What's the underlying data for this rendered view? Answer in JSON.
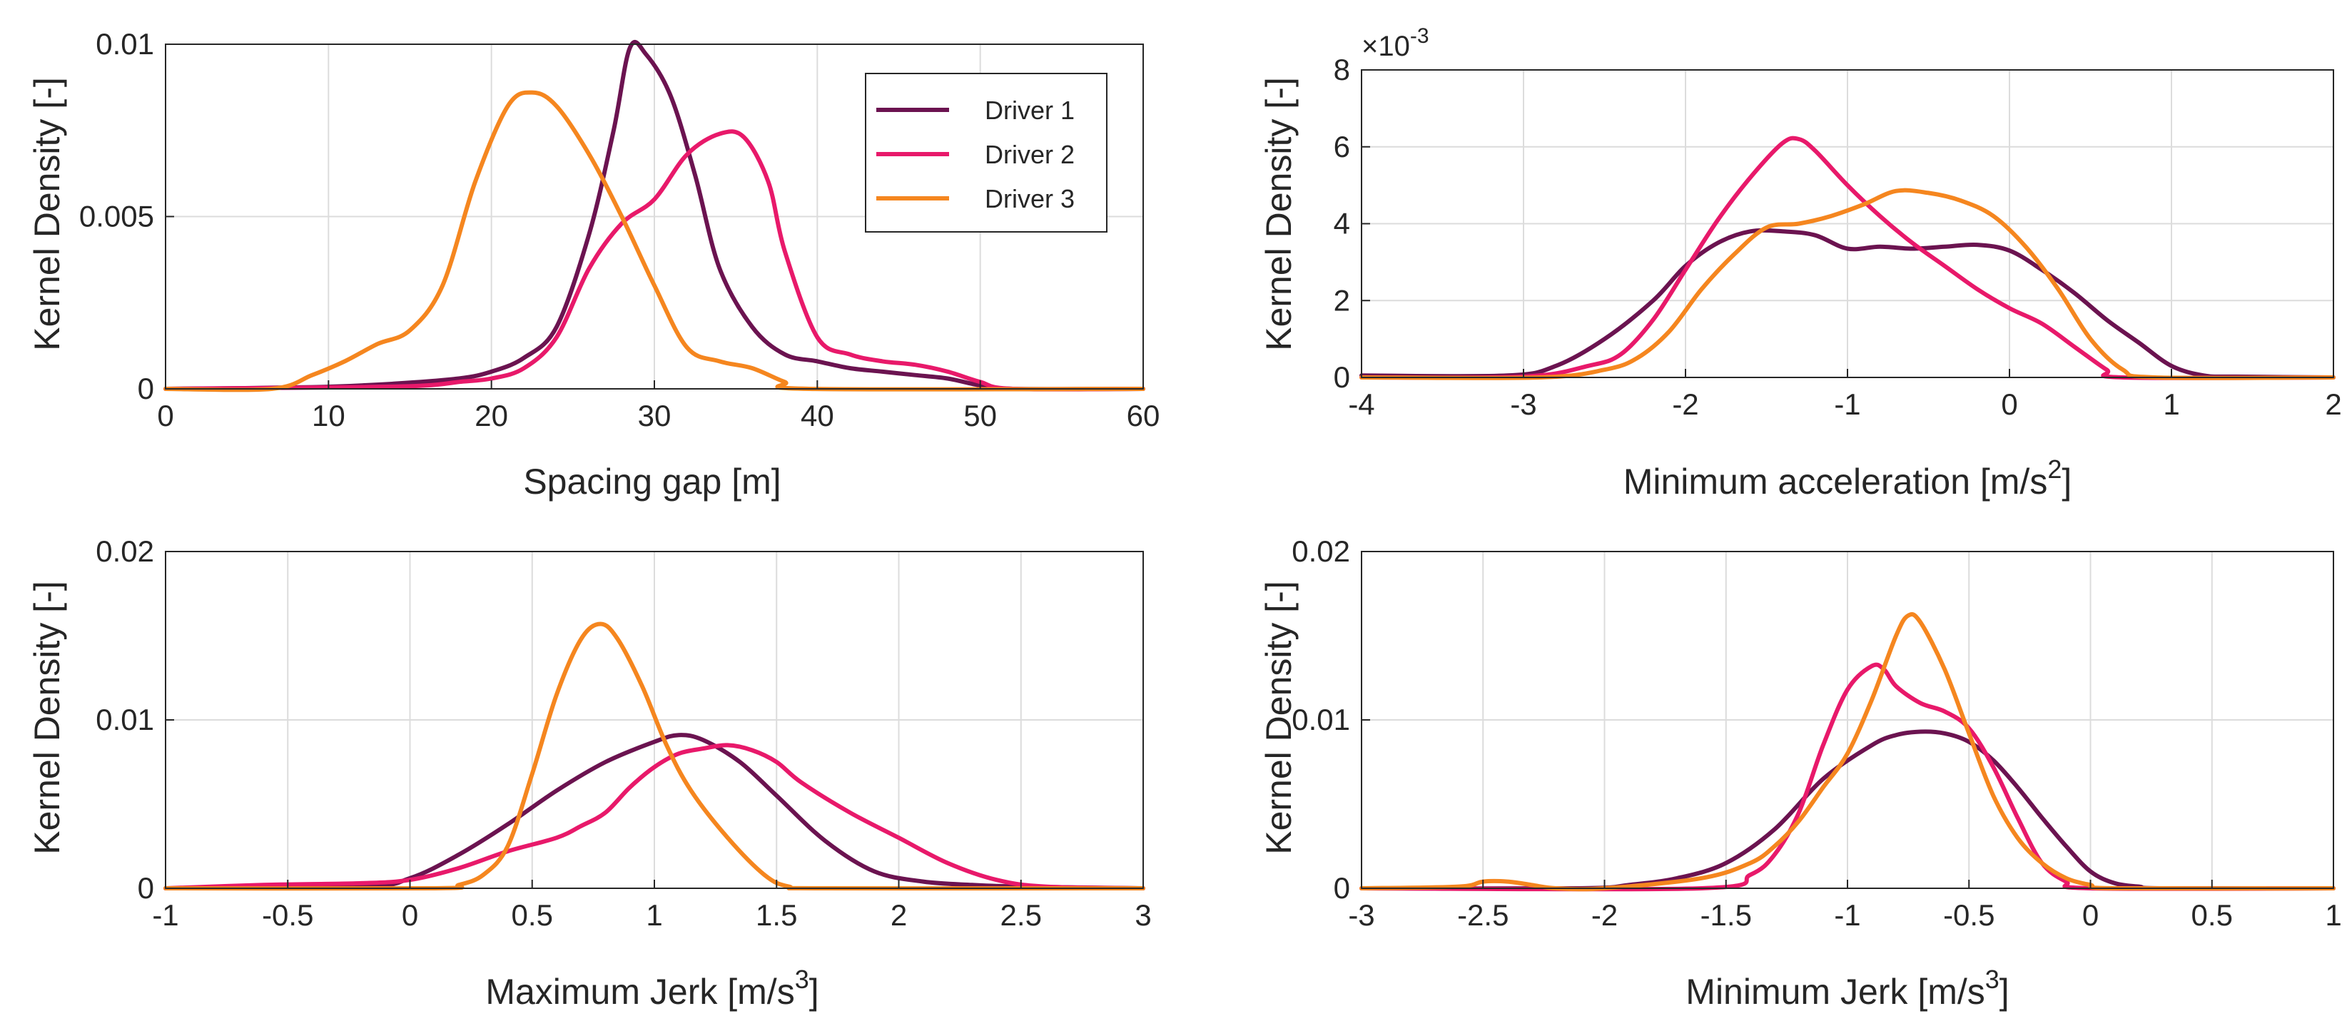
{
  "colors": {
    "driver1": "#6b1350",
    "driver2": "#e8196a",
    "driver3": "#f5861f"
  },
  "chart_data": [
    {
      "id": "spacing",
      "type": "line",
      "title": "",
      "xlabel": "Spacing gap [m]",
      "ylabel": "Kernel Density [-]",
      "xlim": [
        0,
        60
      ],
      "ylim": [
        0,
        0.01
      ],
      "xticks": [
        0,
        10,
        20,
        30,
        40,
        50,
        60
      ],
      "xtick_labels": [
        "0",
        "10",
        "20",
        "30",
        "40",
        "50",
        "60"
      ],
      "yticks": [
        0,
        0.005,
        0.01
      ],
      "ytick_labels": [
        "0",
        "0.005",
        "0.01"
      ],
      "legend": {
        "position": "top-right",
        "entries": [
          "Driver 1",
          "Driver 2",
          "Driver 3"
        ]
      },
      "series": [
        {
          "name": "Driver 1",
          "color": "driver1",
          "x": [
            0,
            9,
            14,
            18,
            20,
            22,
            24,
            26,
            27.5,
            28.5,
            29.5,
            31,
            32.5,
            34,
            36,
            38,
            40,
            42,
            44,
            46,
            48,
            50,
            52,
            60
          ],
          "y": [
            0,
            5e-05,
            0.00015,
            0.0003,
            0.0005,
            0.0009,
            0.0018,
            0.0045,
            0.0075,
            0.0099,
            0.0097,
            0.0085,
            0.0062,
            0.0035,
            0.0018,
            0.001,
            0.0008,
            0.0006,
            0.0005,
            0.0004,
            0.0003,
            0.0001,
            0,
            0
          ]
        },
        {
          "name": "Driver 2",
          "color": "driver2",
          "x": [
            0,
            12,
            16,
            18,
            20,
            22,
            24,
            26,
            28,
            30,
            32,
            34,
            35.5,
            37,
            38,
            40,
            42,
            44,
            46,
            48,
            50,
            52,
            60
          ],
          "y": [
            0,
            5e-05,
            0.0001,
            0.0002,
            0.0003,
            0.0006,
            0.0015,
            0.0035,
            0.0048,
            0.0055,
            0.0068,
            0.0074,
            0.0073,
            0.006,
            0.004,
            0.0015,
            0.001,
            0.0008,
            0.0007,
            0.0005,
            0.0002,
            0,
            0
          ]
        },
        {
          "name": "Driver 3",
          "color": "driver3",
          "x": [
            0,
            6.5,
            9,
            11,
            13,
            15,
            17,
            19,
            21,
            22.5,
            24,
            26,
            28,
            30,
            32,
            34,
            36,
            38,
            39.5,
            60
          ],
          "y": [
            0,
            0,
            0.0004,
            0.0008,
            0.0013,
            0.0017,
            0.003,
            0.006,
            0.0082,
            0.0086,
            0.0082,
            0.0068,
            0.005,
            0.003,
            0.0012,
            0.0008,
            0.0006,
            0.0002,
            0,
            0
          ]
        }
      ]
    },
    {
      "id": "min-acc",
      "type": "line",
      "title": "",
      "xlabel": "Minimum acceleration [m/s",
      "xlabel_sup": "2",
      "xlabel_end": "]",
      "ylabel": "Kernel Density [-]",
      "y_exponent": "×10",
      "y_exponent_sup": "-3",
      "xlim": [
        -4,
        2
      ],
      "ylim": [
        0,
        8
      ],
      "xticks": [
        -4,
        -3,
        -2,
        -1,
        0,
        1,
        2
      ],
      "xtick_labels": [
        "-4",
        "-3",
        "-2",
        "-1",
        "0",
        "1",
        "2"
      ],
      "yticks": [
        0,
        2,
        4,
        6,
        8
      ],
      "ytick_labels": [
        "0",
        "2",
        "4",
        "6",
        "8"
      ],
      "series": [
        {
          "name": "Driver 1",
          "color": "driver1",
          "x": [
            -4,
            -3.1,
            -2.8,
            -2.5,
            -2.2,
            -2.0,
            -1.8,
            -1.6,
            -1.4,
            -1.2,
            -1.0,
            -0.8,
            -0.6,
            -0.4,
            -0.2,
            0,
            0.2,
            0.4,
            0.6,
            0.8,
            1.0,
            1.2,
            1.4,
            2
          ],
          "y": [
            0.05,
            0.05,
            0.3,
            1.0,
            2.0,
            2.9,
            3.5,
            3.8,
            3.8,
            3.7,
            3.35,
            3.4,
            3.35,
            3.4,
            3.45,
            3.3,
            2.8,
            2.2,
            1.5,
            0.9,
            0.3,
            0.05,
            0.02,
            0
          ]
        },
        {
          "name": "Driver 2",
          "color": "driver2",
          "x": [
            -4,
            -3.0,
            -2.6,
            -2.4,
            -2.2,
            -2.0,
            -1.8,
            -1.6,
            -1.4,
            -1.3,
            -1.2,
            -1.0,
            -0.8,
            -0.6,
            -0.4,
            -0.2,
            0,
            0.2,
            0.4,
            0.6,
            0.7,
            2
          ],
          "y": [
            0,
            0.02,
            0.3,
            0.6,
            1.5,
            2.8,
            4.1,
            5.2,
            6.1,
            6.2,
            5.9,
            5.0,
            4.2,
            3.5,
            2.9,
            2.3,
            1.8,
            1.4,
            0.8,
            0.2,
            0,
            0
          ]
        },
        {
          "name": "Driver 3",
          "color": "driver3",
          "x": [
            -4,
            -2.9,
            -2.5,
            -2.3,
            -2.1,
            -1.9,
            -1.7,
            -1.5,
            -1.3,
            -1.1,
            -0.9,
            -0.7,
            -0.5,
            -0.3,
            -0.1,
            0.1,
            0.3,
            0.5,
            0.7,
            0.9,
            2
          ],
          "y": [
            0,
            0,
            0.2,
            0.5,
            1.2,
            2.3,
            3.2,
            3.9,
            4.0,
            4.2,
            4.5,
            4.85,
            4.8,
            4.6,
            4.2,
            3.4,
            2.3,
            1.0,
            0.2,
            0,
            0
          ]
        }
      ]
    },
    {
      "id": "max-jerk",
      "type": "line",
      "title": "",
      "xlabel": "Maximum Jerk [m/s",
      "xlabel_sup": "3",
      "xlabel_end": "]",
      "ylabel": "Kernel Density [-]",
      "xlim": [
        -1,
        3
      ],
      "ylim": [
        0,
        0.02
      ],
      "xticks": [
        -1,
        -0.5,
        0,
        0.5,
        1,
        1.5,
        2,
        2.5,
        3
      ],
      "xtick_labels": [
        "-1",
        "-0.5",
        "0",
        "0.5",
        "1",
        "1.5",
        "2",
        "2.5",
        "3"
      ],
      "yticks": [
        0,
        0.01,
        0.02
      ],
      "ytick_labels": [
        "0",
        "0.01",
        "0.02"
      ],
      "series": [
        {
          "name": "Driver 1",
          "color": "driver1",
          "x": [
            -1,
            -0.2,
            0,
            0.2,
            0.4,
            0.6,
            0.8,
            1.0,
            1.1,
            1.2,
            1.35,
            1.5,
            1.7,
            1.9,
            2.1,
            2.3,
            2.5,
            3
          ],
          "y": [
            0,
            0.0001,
            0.0006,
            0.002,
            0.0038,
            0.0058,
            0.0075,
            0.0087,
            0.0091,
            0.0088,
            0.0075,
            0.0055,
            0.0028,
            0.001,
            0.0004,
            0.0002,
            0.0001,
            0
          ]
        },
        {
          "name": "Driver 2",
          "color": "driver2",
          "x": [
            -1,
            -0.6,
            -0.2,
            0,
            0.2,
            0.4,
            0.6,
            0.7,
            0.8,
            0.9,
            1.0,
            1.1,
            1.2,
            1.3,
            1.4,
            1.5,
            1.6,
            1.8,
            2.0,
            2.2,
            2.4,
            2.6,
            3
          ],
          "y": [
            0,
            0.0002,
            0.0003,
            0.0005,
            0.0012,
            0.0022,
            0.003,
            0.0037,
            0.0045,
            0.006,
            0.0072,
            0.008,
            0.0083,
            0.0085,
            0.0082,
            0.0075,
            0.0063,
            0.0045,
            0.003,
            0.0015,
            0.0005,
            0.0001,
            0
          ]
        },
        {
          "name": "Driver 3",
          "color": "driver3",
          "x": [
            -1,
            0.1,
            0.2,
            0.3,
            0.4,
            0.5,
            0.6,
            0.7,
            0.78,
            0.85,
            0.95,
            1.05,
            1.15,
            1.3,
            1.45,
            1.55,
            1.7,
            3
          ],
          "y": [
            0,
            0,
            0.0002,
            0.0008,
            0.0025,
            0.0068,
            0.0115,
            0.0148,
            0.0157,
            0.0148,
            0.012,
            0.0085,
            0.0058,
            0.003,
            0.0008,
            0.0001,
            0,
            0
          ]
        }
      ]
    },
    {
      "id": "min-jerk",
      "type": "line",
      "title": "",
      "xlabel": "Minimum Jerk [m/s",
      "xlabel_sup": "3",
      "xlabel_end": "]",
      "ylabel": "Kernel Density [-]",
      "xlim": [
        -3,
        1
      ],
      "ylim": [
        0,
        0.02
      ],
      "xticks": [
        -3,
        -2.5,
        -2,
        -1.5,
        -1,
        -0.5,
        0,
        0.5,
        1
      ],
      "xtick_labels": [
        "-3",
        "-2.5",
        "-2",
        "-1.5",
        "-1",
        "-0.5",
        "0",
        "0.5",
        "1"
      ],
      "yticks": [
        0,
        0.01,
        0.02
      ],
      "ytick_labels": [
        "0",
        "0.01",
        "0.02"
      ],
      "series": [
        {
          "name": "Driver 1",
          "color": "driver1",
          "x": [
            -3,
            -2.1,
            -1.9,
            -1.7,
            -1.5,
            -1.3,
            -1.1,
            -0.9,
            -0.8,
            -0.7,
            -0.6,
            -0.5,
            -0.4,
            -0.3,
            -0.2,
            -0.1,
            0,
            0.1,
            0.2,
            0.3,
            1
          ],
          "y": [
            0,
            0,
            0.0002,
            0.0006,
            0.0015,
            0.0035,
            0.0065,
            0.0085,
            0.0091,
            0.0093,
            0.0092,
            0.0087,
            0.0076,
            0.006,
            0.0042,
            0.0025,
            0.001,
            0.0003,
            0.0001,
            0,
            0
          ]
        },
        {
          "name": "Driver 2",
          "color": "driver2",
          "x": [
            -3,
            -1.6,
            -1.4,
            -1.3,
            -1.2,
            -1.1,
            -1.0,
            -0.9,
            -0.85,
            -0.8,
            -0.7,
            -0.6,
            -0.5,
            -0.4,
            -0.3,
            -0.2,
            -0.1,
            0,
            1
          ],
          "y": [
            0,
            0,
            0.0008,
            0.002,
            0.0045,
            0.0085,
            0.0118,
            0.0132,
            0.013,
            0.012,
            0.011,
            0.0105,
            0.0095,
            0.0072,
            0.0042,
            0.0015,
            0.0004,
            0,
            0
          ]
        },
        {
          "name": "Driver 3",
          "color": "driver3",
          "x": [
            -3,
            -2.6,
            -2.5,
            -2.4,
            -2.3,
            -2.2,
            -2.0,
            -1.6,
            -1.4,
            -1.3,
            -1.2,
            -1.1,
            -1.0,
            -0.9,
            -0.8,
            -0.75,
            -0.7,
            -0.6,
            -0.5,
            -0.4,
            -0.3,
            -0.2,
            -0.1,
            0,
            0.1,
            1
          ],
          "y": [
            0,
            0.0001,
            0.0004,
            0.0004,
            0.0002,
            0,
            0,
            0.0006,
            0.0015,
            0.0025,
            0.004,
            0.006,
            0.008,
            0.0112,
            0.015,
            0.0162,
            0.0158,
            0.013,
            0.0092,
            0.0055,
            0.003,
            0.0015,
            0.0006,
            0.0002,
            0,
            0
          ]
        }
      ]
    }
  ]
}
